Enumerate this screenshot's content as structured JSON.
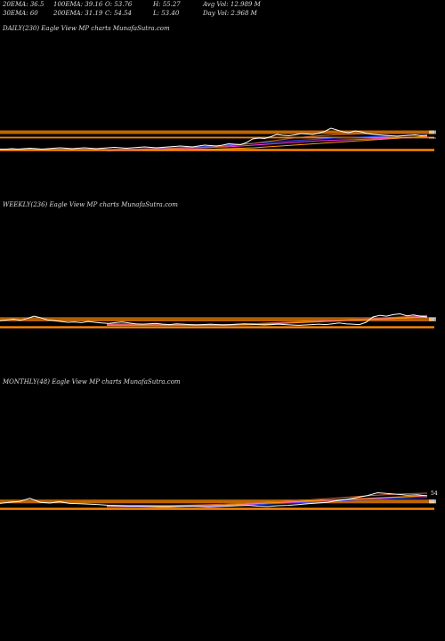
{
  "header": {
    "row1": [
      {
        "label": "20EMA",
        "value": "36.5"
      },
      {
        "label": "100EMA",
        "value": "39.16"
      },
      {
        "label": "O",
        "value": "53.76"
      },
      {
        "label": "H",
        "value": "55.27"
      },
      {
        "label": "Avg Vol",
        "value": "12.989 M"
      }
    ],
    "row2": [
      {
        "label": "30EMA",
        "value": "60"
      },
      {
        "label": "200EMA",
        "value": "31.19"
      },
      {
        "label": "C",
        "value": "54.54"
      },
      {
        "label": "L",
        "value": "53.40"
      },
      {
        "label": "Day Vol",
        "value": "2.968 M"
      }
    ]
  },
  "panels": [
    {
      "id": "daily",
      "title": "DAILY(230) Eagle   View  MP charts MunafaSutra.com"
    },
    {
      "id": "weekly",
      "title": "WEEKLY(236) Eagle   View  MP charts MunafaSutra.com"
    },
    {
      "id": "monthly",
      "title": "MONTHLY(48) Eagle   View  MP charts MunafaSutra.com",
      "right_label": "54"
    }
  ],
  "colors": {
    "price": "#ffffff",
    "ema_blue": "#3355ff",
    "ema_magenta": "#ff33ff",
    "ema_orange": "#ff9900",
    "ema_brown": "#cc6633",
    "band_orange": "#ff8800"
  },
  "chart_data": [
    {
      "type": "line",
      "name": "daily",
      "ylim": [
        0,
        100
      ],
      "price": [
        5,
        5,
        6,
        5,
        6,
        7,
        6,
        5,
        6,
        7,
        8,
        7,
        6,
        7,
        8,
        7,
        6,
        7,
        8,
        9,
        8,
        7,
        8,
        9,
        10,
        9,
        8,
        9,
        10,
        11,
        12,
        11,
        10,
        12,
        14,
        13,
        12,
        14,
        17,
        16,
        15,
        20,
        28,
        30,
        29,
        33,
        38,
        36,
        35,
        37,
        40,
        39,
        38,
        41,
        45,
        52,
        48,
        44,
        42,
        46,
        44,
        40,
        38,
        37,
        36,
        35,
        34,
        35,
        36,
        37,
        35,
        36
      ],
      "bands": [
        40,
        42,
        44,
        46,
        30,
        31,
        32,
        4,
        2
      ],
      "emas": [
        {
          "color": "ema_blue",
          "values": [
            3,
            4,
            5,
            6,
            7,
            8,
            9,
            10,
            12,
            14,
            16,
            18,
            20,
            22,
            24,
            26,
            28,
            30,
            31,
            32,
            33,
            34,
            35,
            36,
            36
          ]
        },
        {
          "color": "ema_magenta",
          "values": [
            2,
            3,
            3,
            4,
            5,
            6,
            7,
            8,
            9,
            10,
            12,
            14,
            16,
            18,
            20,
            22,
            24,
            25,
            26,
            27,
            28,
            29,
            30,
            31,
            32
          ]
        },
        {
          "color": "ema_orange",
          "values": [
            1,
            2,
            2,
            3,
            3,
            4,
            4,
            5,
            5,
            6,
            7,
            8,
            10,
            12,
            14,
            16,
            18,
            20,
            22,
            24,
            26,
            28,
            30,
            32,
            34
          ]
        },
        {
          "color": "ema_brown",
          "values": [
            4,
            5,
            5,
            6,
            6,
            7,
            8,
            9,
            10,
            12,
            15,
            18,
            22,
            26,
            30,
            33,
            35,
            37,
            38,
            39,
            40,
            40,
            40,
            40,
            40
          ]
        }
      ]
    },
    {
      "type": "line",
      "name": "weekly",
      "ylim": [
        0,
        100
      ],
      "price": [
        18,
        20,
        22,
        19,
        24,
        30,
        26,
        20,
        18,
        16,
        14,
        15,
        13,
        16,
        14,
        12,
        11,
        13,
        15,
        12,
        10,
        9,
        10,
        11,
        9,
        8,
        10,
        9,
        8,
        7,
        8,
        9,
        8,
        7,
        8,
        9,
        10,
        9,
        8,
        7,
        8,
        9,
        8,
        7,
        6,
        7,
        8,
        9,
        8,
        10,
        12,
        10,
        9,
        8,
        14,
        28,
        32,
        30,
        34,
        36,
        31,
        33,
        30,
        28
      ],
      "bands": [
        18,
        20,
        22,
        24,
        26,
        2,
        0
      ],
      "emas": [
        {
          "color": "ema_blue",
          "values": [
            10,
            10,
            9,
            9,
            8,
            8,
            8,
            8,
            9,
            10,
            12,
            14,
            16,
            18,
            20,
            22,
            24,
            26,
            28,
            30
          ]
        },
        {
          "color": "ema_magenta",
          "values": [
            8,
            8,
            8,
            8,
            7,
            7,
            7,
            7,
            8,
            9,
            11,
            13,
            15,
            17,
            19,
            21,
            23,
            25,
            27,
            29
          ]
        },
        {
          "color": "ema_orange",
          "values": [
            6,
            6,
            6,
            6,
            6,
            6,
            6,
            6,
            7,
            8,
            10,
            12,
            14,
            16,
            18,
            20,
            22,
            24,
            26,
            28
          ]
        },
        {
          "color": "ema_brown",
          "values": [
            9,
            9,
            8,
            8,
            8,
            8,
            8,
            8,
            9,
            11,
            13,
            15,
            17,
            19,
            21,
            23,
            25,
            27,
            29,
            32
          ]
        }
      ]
    },
    {
      "type": "line",
      "name": "monthly",
      "ylim": [
        0,
        100
      ],
      "price": [
        15,
        18,
        20,
        28,
        18,
        16,
        19,
        15,
        14,
        13,
        12,
        10,
        9,
        8,
        8,
        7,
        6,
        6,
        7,
        8,
        7,
        6,
        7,
        8,
        9,
        10,
        8,
        7,
        9,
        10,
        12,
        14,
        16,
        18,
        22,
        26,
        30,
        35,
        42,
        40,
        38,
        36,
        37,
        34
      ],
      "bands": [
        16,
        18,
        20,
        22,
        24,
        2,
        0
      ],
      "emas": [
        {
          "color": "ema_blue",
          "values": [
            6,
            6,
            6,
            6,
            6,
            7,
            8,
            9,
            10,
            12,
            14,
            16,
            18,
            20,
            22,
            24,
            26,
            28,
            29,
            30
          ]
        },
        {
          "color": "ema_magenta",
          "values": [
            7,
            7,
            7,
            7,
            7,
            8,
            9,
            10,
            12,
            14,
            16,
            18,
            20,
            22,
            24,
            26,
            28,
            30,
            32,
            34
          ]
        },
        {
          "color": "ema_orange",
          "values": [
            8,
            8,
            8,
            8,
            8,
            9,
            10,
            11,
            13,
            15,
            17,
            19,
            21,
            23,
            25,
            27,
            29,
            31,
            33,
            35
          ]
        },
        {
          "color": "ema_brown",
          "values": [
            10,
            10,
            10,
            10,
            10,
            11,
            12,
            13,
            15,
            17,
            19,
            21,
            24,
            27,
            30,
            33,
            36,
            38,
            40,
            41
          ]
        }
      ]
    }
  ]
}
